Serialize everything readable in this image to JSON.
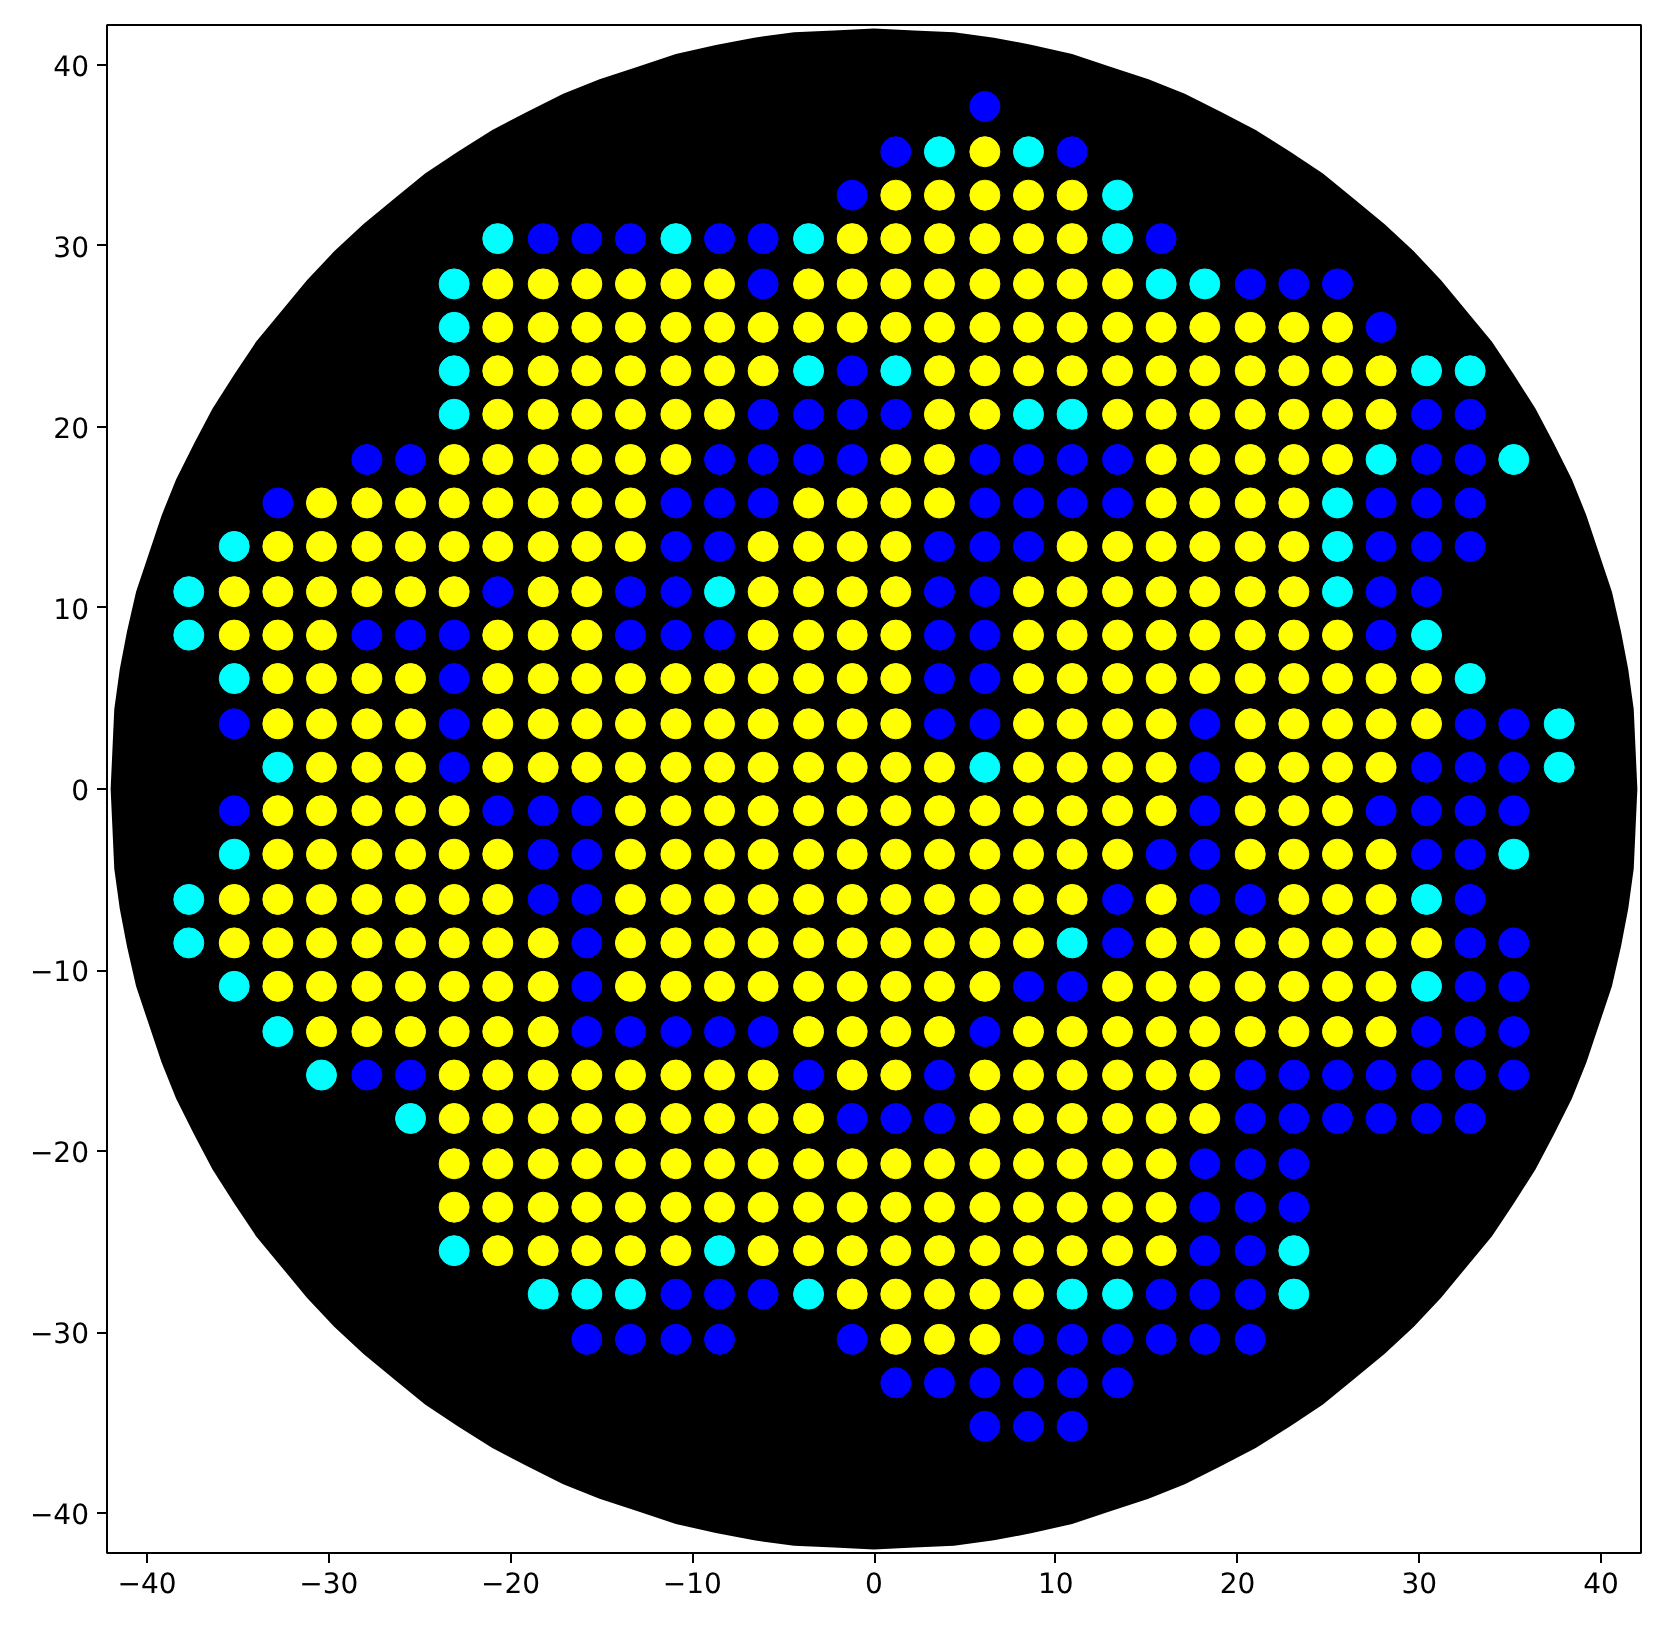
{
  "chart_data": {
    "type": "scatter",
    "xlim": [
      -42.2,
      42.2
    ],
    "ylim": [
      -42.2,
      42.2
    ],
    "xticks": [
      -40,
      -30,
      -20,
      -10,
      0,
      10,
      20,
      30,
      40
    ],
    "yticks": [
      -40,
      -30,
      -20,
      -10,
      0,
      10,
      20,
      30,
      40
    ],
    "series": [
      {
        "type": "area",
        "color": "#000000",
        "x": [
          -42,
          -41.9,
          -41.8,
          -41.5,
          -41.1,
          -40.6,
          -39.9,
          -39.2,
          -38.4,
          -37.4,
          -36.4,
          -35.2,
          -34,
          -32.6,
          -31.2,
          -29.7,
          -28.1,
          -26.4,
          -24.7,
          -22.9,
          -21,
          -19.1,
          -17.1,
          -15.1,
          -13,
          -10.9,
          -8.7,
          -6.6,
          -4.4,
          -2.2,
          0,
          2.2,
          4.4,
          6.6,
          8.7,
          10.9,
          13,
          15.1,
          17.1,
          19.1,
          21,
          22.9,
          24.7,
          26.4,
          28.1,
          29.7,
          31.2,
          32.6,
          34,
          35.2,
          36.4,
          37.4,
          38.4,
          39.2,
          39.9,
          40.6,
          41.1,
          41.5,
          41.8,
          41.9,
          42
        ],
        "values": [
          0,
          2.2,
          4.4,
          6.6,
          8.7,
          10.9,
          13,
          15.1,
          17.1,
          19.1,
          21,
          22.9,
          24.7,
          26.4,
          28.1,
          29.7,
          31.2,
          32.6,
          34,
          35.2,
          36.4,
          37.4,
          38.4,
          39.2,
          39.9,
          40.6,
          41.1,
          41.5,
          41.8,
          41.9,
          42,
          41.9,
          41.8,
          41.5,
          41.1,
          40.6,
          39.9,
          39.2,
          38.4,
          37.4,
          36.4,
          35.2,
          34,
          32.6,
          31.2,
          29.7,
          28.1,
          26.4,
          24.7,
          22.9,
          21,
          19.1,
          17.1,
          15.1,
          13,
          10.9,
          8.7,
          6.6,
          4.4,
          2.2,
          0
        ]
      },
      {
        "type": "area",
        "color": "#000000",
        "x": [
          -42,
          -41.9,
          -41.8,
          -41.5,
          -41.1,
          -40.6,
          -39.9,
          -39.2,
          -38.4,
          -37.4,
          -36.4,
          -35.2,
          -34,
          -32.6,
          -31.2,
          -29.7,
          -28.1,
          -26.4,
          -24.7,
          -22.9,
          -21,
          -19.1,
          -17.1,
          -15.1,
          -13,
          -10.9,
          -8.7,
          -6.6,
          -4.4,
          -2.2,
          0,
          2.2,
          4.4,
          6.6,
          8.7,
          10.9,
          13,
          15.1,
          17.1,
          19.1,
          21,
          22.9,
          24.7,
          26.4,
          28.1,
          29.7,
          31.2,
          32.6,
          34,
          35.2,
          36.4,
          37.4,
          38.4,
          39.2,
          39.9,
          40.6,
          41.1,
          41.5,
          41.8,
          41.9,
          42
        ],
        "values": [
          0,
          -2.2,
          -4.4,
          -6.6,
          -8.7,
          -10.9,
          -13,
          -15.1,
          -17.1,
          -19.1,
          -21,
          -22.9,
          -24.7,
          -26.4,
          -28.1,
          -29.7,
          -31.2,
          -32.6,
          -34,
          -35.2,
          -36.4,
          -37.4,
          -38.4,
          -39.2,
          -39.9,
          -40.6,
          -41.1,
          -41.5,
          -41.8,
          -41.9,
          -42,
          -41.9,
          -41.8,
          -41.5,
          -41.1,
          -40.6,
          -39.9,
          -39.2,
          -38.4,
          -37.4,
          -36.4,
          -35.2,
          -34,
          -32.6,
          -31.2,
          -29.7,
          -28.1,
          -26.4,
          -24.7,
          -22.9,
          -21,
          -19.1,
          -17.1,
          -15.1,
          -13,
          -10.9,
          -8.7,
          -6.6,
          -4.4,
          -2.2,
          0
        ]
      },
      {
        "color": "#ffff00",
        "marker": "circle",
        "x": [
          6.1,
          1.2,
          3.6,
          6.1,
          8.5,
          10.9,
          -1.2,
          1.2,
          3.6,
          6.1,
          8.5,
          10.9,
          -20.7,
          -18.2,
          -15.8,
          -13.4,
          -10.9,
          -8.5,
          -3.6,
          -1.2,
          1.2,
          3.6,
          6.1,
          8.5,
          10.9,
          13.4,
          -20.7,
          -18.2,
          -15.8,
          -13.4,
          -10.9,
          -8.5,
          -6.1,
          -3.6,
          -1.2,
          1.2,
          3.6,
          6.1,
          8.5,
          10.9,
          13.4,
          15.8,
          18.2,
          20.7,
          23.1,
          25.5,
          -20.7,
          -18.2,
          -15.8,
          -13.4,
          -10.9,
          -8.5,
          -6.1,
          3.6,
          6.1,
          8.5,
          10.9,
          13.4,
          15.8,
          18.2,
          20.7,
          23.1,
          25.5,
          27.9,
          -20.7,
          -18.2,
          -15.8,
          -13.4,
          -10.9,
          -8.5,
          3.6,
          6.1,
          13.4,
          15.8,
          18.2,
          20.7,
          23.1,
          25.5,
          27.9,
          -23.1,
          -20.7,
          -18.2,
          -15.8,
          -13.4,
          -10.9,
          1.2,
          3.6,
          15.8,
          18.2,
          20.7,
          23.1,
          25.5,
          -30.4,
          -27.9,
          -25.5,
          -23.1,
          -20.7,
          -18.2,
          -15.8,
          -13.4,
          -3.6,
          -1.2,
          1.2,
          3.6,
          15.8,
          18.2,
          20.7,
          23.1,
          -32.8,
          -30.4,
          -27.9,
          -25.5,
          -23.1,
          -20.7,
          -18.2,
          -15.8,
          -13.4,
          -6.1,
          -3.6,
          -1.2,
          1.2,
          10.9,
          13.4,
          15.8,
          18.2,
          20.7,
          23.1,
          -35.2,
          -32.8,
          -30.4,
          -27.9,
          -25.5,
          -23.1,
          -18.2,
          -15.8,
          -6.1,
          -3.6,
          -1.2,
          1.2,
          8.5,
          10.9,
          13.4,
          15.8,
          18.2,
          20.7,
          23.1,
          -35.2,
          -32.8,
          -30.4,
          -20.7,
          -18.2,
          -15.8,
          -6.1,
          -3.6,
          -1.2,
          1.2,
          8.5,
          10.9,
          13.4,
          15.8,
          18.2,
          20.7,
          23.1,
          25.5,
          -32.8,
          -30.4,
          -27.9,
          -25.5,
          -20.7,
          -18.2,
          -15.8,
          -13.4,
          -10.9,
          -8.5,
          -6.1,
          -3.6,
          -1.2,
          1.2,
          8.5,
          10.9,
          13.4,
          15.8,
          18.2,
          20.7,
          23.1,
          25.5,
          27.9,
          30.4,
          -32.8,
          -30.4,
          -27.9,
          -25.5,
          -20.7,
          -18.2,
          -15.8,
          -13.4,
          -10.9,
          -8.5,
          -6.1,
          -3.6,
          -1.2,
          1.2,
          8.5,
          10.9,
          13.4,
          15.8,
          20.7,
          23.1,
          25.5,
          27.9,
          30.4,
          -30.4,
          -27.9,
          -25.5,
          -20.7,
          -18.2,
          -15.8,
          -13.4,
          -10.9,
          -8.5,
          -6.1,
          -3.6,
          -1.2,
          1.2,
          3.6,
          8.5,
          10.9,
          13.4,
          15.8,
          20.7,
          23.1,
          25.5,
          27.9,
          -32.8,
          -30.4,
          -27.9,
          -25.5,
          -23.1,
          -13.4,
          -10.9,
          -8.5,
          -6.1,
          -3.6,
          -1.2,
          1.2,
          3.6,
          6.1,
          8.5,
          10.9,
          13.4,
          15.8,
          20.7,
          23.1,
          25.5,
          -32.8,
          -30.4,
          -27.9,
          -25.5,
          -23.1,
          -20.7,
          -13.4,
          -10.9,
          -8.5,
          -6.1,
          -3.6,
          -1.2,
          1.2,
          3.6,
          6.1,
          8.5,
          10.9,
          13.4,
          20.7,
          23.1,
          25.5,
          27.9,
          -35.2,
          -32.8,
          -30.4,
          -27.9,
          -25.5,
          -23.1,
          -20.7,
          -13.4,
          -10.9,
          -8.5,
          -6.1,
          -3.6,
          -1.2,
          1.2,
          3.6,
          6.1,
          8.5,
          10.9,
          15.8,
          23.1,
          25.5,
          27.9,
          -35.2,
          -32.8,
          -30.4,
          -27.9,
          -25.5,
          -23.1,
          -20.7,
          -18.2,
          -13.4,
          -10.9,
          -8.5,
          -6.1,
          -3.6,
          -1.2,
          1.2,
          3.6,
          6.1,
          8.5,
          15.8,
          18.2,
          20.7,
          23.1,
          25.5,
          27.9,
          30.4,
          -32.8,
          -30.4,
          -27.9,
          -25.5,
          -23.1,
          -20.7,
          -18.2,
          -13.4,
          -10.9,
          -8.5,
          -6.1,
          -3.6,
          -1.2,
          1.2,
          3.6,
          6.1,
          13.4,
          15.8,
          18.2,
          20.7,
          23.1,
          25.5,
          27.9,
          -30.4,
          -27.9,
          -25.5,
          -23.1,
          -20.7,
          -18.2,
          -3.6,
          -1.2,
          1.2,
          3.6,
          8.5,
          10.9,
          13.4,
          15.8,
          18.2,
          20.7,
          23.1,
          25.5,
          27.9,
          -23.1,
          -20.7,
          -18.2,
          -15.8,
          -13.4,
          -10.9,
          -8.5,
          -6.1,
          -1.2,
          1.2,
          6.1,
          8.5,
          10.9,
          13.4,
          15.8,
          18.2,
          -23.1,
          -20.7,
          -18.2,
          -15.8,
          -13.4,
          -10.9,
          -8.5,
          -6.1,
          -3.6,
          6.1,
          8.5,
          10.9,
          13.4,
          15.8,
          18.2,
          -23.1,
          -20.7,
          -18.2,
          -15.8,
          -13.4,
          -10.9,
          -8.5,
          -6.1,
          -3.6,
          -1.2,
          1.2,
          3.6,
          6.1,
          8.5,
          10.9,
          13.4,
          15.8,
          -23.1,
          -20.7,
          -18.2,
          -15.8,
          -13.4,
          -10.9,
          -8.5,
          -6.1,
          -3.6,
          -1.2,
          1.2,
          3.6,
          6.1,
          8.5,
          10.9,
          13.4,
          15.8,
          -20.7,
          -18.2,
          -15.8,
          -13.4,
          -10.9,
          -6.1,
          -3.6,
          -1.2,
          1.2,
          3.6,
          6.1,
          8.5,
          10.9,
          13.4,
          15.8,
          -1.2,
          1.2,
          3.6,
          6.1,
          8.5,
          1.2,
          3.6,
          6.1
        ],
        "values": [
          35.2,
          32.8,
          32.8,
          32.8,
          32.8,
          32.8,
          30.4,
          30.4,
          30.4,
          30.4,
          30.4,
          30.4,
          27.9,
          27.9,
          27.9,
          27.9,
          27.9,
          27.9,
          27.9,
          27.9,
          27.9,
          27.9,
          27.9,
          27.9,
          27.9,
          27.9,
          25.5,
          25.5,
          25.5,
          25.5,
          25.5,
          25.5,
          25.5,
          25.5,
          25.5,
          25.5,
          25.5,
          25.5,
          25.5,
          25.5,
          25.5,
          25.5,
          25.5,
          25.5,
          25.5,
          25.5,
          23.1,
          23.1,
          23.1,
          23.1,
          23.1,
          23.1,
          23.1,
          23.1,
          23.1,
          23.1,
          23.1,
          23.1,
          23.1,
          23.1,
          23.1,
          23.1,
          23.1,
          23.1,
          20.7,
          20.7,
          20.7,
          20.7,
          20.7,
          20.7,
          20.7,
          20.7,
          20.7,
          20.7,
          20.7,
          20.7,
          20.7,
          20.7,
          20.7,
          18.2,
          18.2,
          18.2,
          18.2,
          18.2,
          18.2,
          18.2,
          18.2,
          18.2,
          18.2,
          18.2,
          18.2,
          18.2,
          15.8,
          15.8,
          15.8,
          15.8,
          15.8,
          15.8,
          15.8,
          15.8,
          15.8,
          15.8,
          15.8,
          15.8,
          15.8,
          15.8,
          15.8,
          15.8,
          13.4,
          13.4,
          13.4,
          13.4,
          13.4,
          13.4,
          13.4,
          13.4,
          13.4,
          13.4,
          13.4,
          13.4,
          13.4,
          13.4,
          13.4,
          13.4,
          13.4,
          13.4,
          13.4,
          10.9,
          10.9,
          10.9,
          10.9,
          10.9,
          10.9,
          10.9,
          10.9,
          10.9,
          10.9,
          10.9,
          10.9,
          10.9,
          10.9,
          10.9,
          10.9,
          10.9,
          10.9,
          10.9,
          8.5,
          8.5,
          8.5,
          8.5,
          8.5,
          8.5,
          8.5,
          8.5,
          8.5,
          8.5,
          8.5,
          8.5,
          8.5,
          8.5,
          8.5,
          8.5,
          8.5,
          8.5,
          6.1,
          6.1,
          6.1,
          6.1,
          6.1,
          6.1,
          6.1,
          6.1,
          6.1,
          6.1,
          6.1,
          6.1,
          6.1,
          6.1,
          6.1,
          6.1,
          6.1,
          6.1,
          6.1,
          6.1,
          6.1,
          6.1,
          6.1,
          6.1,
          3.6,
          3.6,
          3.6,
          3.6,
          3.6,
          3.6,
          3.6,
          3.6,
          3.6,
          3.6,
          3.6,
          3.6,
          3.6,
          3.6,
          3.6,
          3.6,
          3.6,
          3.6,
          3.6,
          3.6,
          3.6,
          3.6,
          3.6,
          1.2,
          1.2,
          1.2,
          1.2,
          1.2,
          1.2,
          1.2,
          1.2,
          1.2,
          1.2,
          1.2,
          1.2,
          1.2,
          1.2,
          1.2,
          1.2,
          1.2,
          1.2,
          1.2,
          1.2,
          1.2,
          1.2,
          -1.2,
          -1.2,
          -1.2,
          -1.2,
          -1.2,
          -1.2,
          -1.2,
          -1.2,
          -1.2,
          -1.2,
          -1.2,
          -1.2,
          -1.2,
          -1.2,
          -1.2,
          -1.2,
          -1.2,
          -1.2,
          -1.2,
          -1.2,
          -1.2,
          -3.6,
          -3.6,
          -3.6,
          -3.6,
          -3.6,
          -3.6,
          -3.6,
          -3.6,
          -3.6,
          -3.6,
          -3.6,
          -3.6,
          -3.6,
          -3.6,
          -3.6,
          -3.6,
          -3.6,
          -3.6,
          -3.6,
          -3.6,
          -3.6,
          -3.6,
          -6.1,
          -6.1,
          -6.1,
          -6.1,
          -6.1,
          -6.1,
          -6.1,
          -6.1,
          -6.1,
          -6.1,
          -6.1,
          -6.1,
          -6.1,
          -6.1,
          -6.1,
          -6.1,
          -6.1,
          -6.1,
          -6.1,
          -6.1,
          -6.1,
          -6.1,
          -8.5,
          -8.5,
          -8.5,
          -8.5,
          -8.5,
          -8.5,
          -8.5,
          -8.5,
          -8.5,
          -8.5,
          -8.5,
          -8.5,
          -8.5,
          -8.5,
          -8.5,
          -8.5,
          -8.5,
          -8.5,
          -8.5,
          -8.5,
          -8.5,
          -8.5,
          -8.5,
          -8.5,
          -8.5,
          -10.9,
          -10.9,
          -10.9,
          -10.9,
          -10.9,
          -10.9,
          -10.9,
          -10.9,
          -10.9,
          -10.9,
          -10.9,
          -10.9,
          -10.9,
          -10.9,
          -10.9,
          -10.9,
          -10.9,
          -10.9,
          -10.9,
          -10.9,
          -10.9,
          -10.9,
          -10.9,
          -13.4,
          -13.4,
          -13.4,
          -13.4,
          -13.4,
          -13.4,
          -13.4,
          -13.4,
          -13.4,
          -13.4,
          -13.4,
          -13.4,
          -13.4,
          -13.4,
          -13.4,
          -13.4,
          -13.4,
          -13.4,
          -13.4,
          -15.8,
          -15.8,
          -15.8,
          -15.8,
          -15.8,
          -15.8,
          -15.8,
          -15.8,
          -15.8,
          -15.8,
          -15.8,
          -15.8,
          -15.8,
          -15.8,
          -15.8,
          -15.8,
          -18.2,
          -18.2,
          -18.2,
          -18.2,
          -18.2,
          -18.2,
          -18.2,
          -18.2,
          -18.2,
          -18.2,
          -18.2,
          -18.2,
          -18.2,
          -18.2,
          -18.2,
          -20.7,
          -20.7,
          -20.7,
          -20.7,
          -20.7,
          -20.7,
          -20.7,
          -20.7,
          -20.7,
          -20.7,
          -20.7,
          -20.7,
          -20.7,
          -20.7,
          -20.7,
          -20.7,
          -20.7,
          -23.1,
          -23.1,
          -23.1,
          -23.1,
          -23.1,
          -23.1,
          -23.1,
          -23.1,
          -23.1,
          -23.1,
          -23.1,
          -23.1,
          -23.1,
          -23.1,
          -23.1,
          -23.1,
          -23.1,
          -25.5,
          -25.5,
          -25.5,
          -25.5,
          -25.5,
          -25.5,
          -25.5,
          -25.5,
          -25.5,
          -25.5,
          -25.5,
          -25.5,
          -25.5,
          -25.5,
          -25.5,
          -27.9,
          -27.9,
          -27.9,
          -27.9,
          -27.9,
          -30.4,
          -30.4,
          -30.4
        ]
      },
      {
        "color": "#0000ff",
        "marker": "circle",
        "x": [
          6.1,
          1.2,
          10.9,
          -1.2,
          -18.2,
          -15.8,
          -13.4,
          -8.5,
          -6.1,
          15.8,
          -6.1,
          20.7,
          23.1,
          25.5,
          27.9,
          -1.2,
          -6.1,
          -3.6,
          -1.2,
          1.2,
          30.4,
          32.8,
          -27.9,
          -25.5,
          -8.5,
          -6.1,
          -3.6,
          -1.2,
          6.1,
          8.5,
          10.9,
          13.4,
          30.4,
          32.8,
          -32.8,
          -10.9,
          -8.5,
          -6.1,
          6.1,
          8.5,
          10.9,
          13.4,
          27.9,
          30.4,
          32.8,
          -10.9,
          -8.5,
          3.6,
          6.1,
          8.5,
          27.9,
          30.4,
          32.8,
          -20.7,
          -13.4,
          -10.9,
          3.6,
          6.1,
          27.9,
          30.4,
          -27.9,
          -25.5,
          -23.1,
          -13.4,
          -10.9,
          -8.5,
          3.6,
          6.1,
          27.9,
          -23.1,
          3.6,
          6.1,
          -35.2,
          -23.1,
          3.6,
          6.1,
          18.2,
          32.8,
          35.2,
          -23.1,
          18.2,
          30.4,
          32.8,
          35.2,
          -35.2,
          -20.7,
          -18.2,
          -15.8,
          18.2,
          27.9,
          30.4,
          32.8,
          35.2,
          -18.2,
          -15.8,
          15.8,
          18.2,
          30.4,
          32.8,
          -18.2,
          -15.8,
          13.4,
          18.2,
          20.7,
          32.8,
          -15.8,
          13.4,
          32.8,
          35.2,
          -15.8,
          8.5,
          10.9,
          32.8,
          35.2,
          -15.8,
          -13.4,
          -10.9,
          -8.5,
          -6.1,
          6.1,
          30.4,
          32.8,
          35.2,
          -27.9,
          -25.5,
          -3.6,
          3.6,
          20.7,
          23.1,
          25.5,
          27.9,
          30.4,
          32.8,
          35.2,
          -1.2,
          1.2,
          3.6,
          20.7,
          23.1,
          25.5,
          27.9,
          30.4,
          32.8,
          18.2,
          20.7,
          23.1,
          18.2,
          20.7,
          23.1,
          18.2,
          20.7,
          -10.9,
          -8.5,
          -6.1,
          15.8,
          18.2,
          20.7,
          -15.8,
          -13.4,
          -10.9,
          -8.5,
          -1.2,
          8.5,
          10.9,
          13.4,
          15.8,
          18.2,
          20.7,
          1.2,
          3.6,
          6.1,
          8.5,
          10.9,
          13.4,
          6.1,
          8.5,
          10.9
        ],
        "values": [
          37.7,
          35.2,
          35.2,
          32.8,
          30.4,
          30.4,
          30.4,
          30.4,
          30.4,
          30.4,
          27.9,
          27.9,
          27.9,
          27.9,
          25.5,
          23.1,
          20.7,
          20.7,
          20.7,
          20.7,
          20.7,
          20.7,
          18.2,
          18.2,
          18.2,
          18.2,
          18.2,
          18.2,
          18.2,
          18.2,
          18.2,
          18.2,
          18.2,
          18.2,
          15.8,
          15.8,
          15.8,
          15.8,
          15.8,
          15.8,
          15.8,
          15.8,
          15.8,
          15.8,
          15.8,
          13.4,
          13.4,
          13.4,
          13.4,
          13.4,
          13.4,
          13.4,
          13.4,
          10.9,
          10.9,
          10.9,
          10.9,
          10.9,
          10.9,
          10.9,
          8.5,
          8.5,
          8.5,
          8.5,
          8.5,
          8.5,
          8.5,
          8.5,
          8.5,
          6.1,
          6.1,
          6.1,
          3.6,
          3.6,
          3.6,
          3.6,
          3.6,
          3.6,
          3.6,
          1.2,
          1.2,
          1.2,
          1.2,
          1.2,
          -1.2,
          -1.2,
          -1.2,
          -1.2,
          -1.2,
          -1.2,
          -1.2,
          -1.2,
          -1.2,
          -3.6,
          -3.6,
          -3.6,
          -3.6,
          -3.6,
          -3.6,
          -6.1,
          -6.1,
          -6.1,
          -6.1,
          -6.1,
          -6.1,
          -8.5,
          -8.5,
          -8.5,
          -8.5,
          -10.9,
          -10.9,
          -10.9,
          -10.9,
          -10.9,
          -13.4,
          -13.4,
          -13.4,
          -13.4,
          -13.4,
          -13.4,
          -13.4,
          -13.4,
          -13.4,
          -15.8,
          -15.8,
          -15.8,
          -15.8,
          -15.8,
          -15.8,
          -15.8,
          -15.8,
          -15.8,
          -15.8,
          -15.8,
          -18.2,
          -18.2,
          -18.2,
          -18.2,
          -18.2,
          -18.2,
          -18.2,
          -18.2,
          -18.2,
          -20.7,
          -20.7,
          -20.7,
          -23.1,
          -23.1,
          -23.1,
          -25.5,
          -25.5,
          -27.9,
          -27.9,
          -27.9,
          -27.9,
          -27.9,
          -27.9,
          -30.4,
          -30.4,
          -30.4,
          -30.4,
          -30.4,
          -30.4,
          -30.4,
          -30.4,
          -30.4,
          -30.4,
          -30.4,
          -32.8,
          -32.8,
          -32.8,
          -32.8,
          -32.8,
          -32.8,
          -35.2,
          -35.2,
          -35.2
        ]
      },
      {
        "color": "#00ffff",
        "marker": "circle",
        "x": [
          3.6,
          8.5,
          13.4,
          -20.7,
          -10.9,
          -3.6,
          13.4,
          -23.1,
          15.8,
          18.2,
          -23.1,
          -23.1,
          -3.6,
          1.2,
          30.4,
          32.8,
          -23.1,
          8.5,
          10.9,
          27.9,
          35.2,
          25.5,
          -35.2,
          25.5,
          -37.7,
          -8.5,
          25.5,
          -37.7,
          30.4,
          -35.2,
          32.8,
          37.7,
          -32.8,
          6.1,
          37.7,
          -35.2,
          35.2,
          -37.7,
          30.4,
          -37.7,
          10.9,
          -35.2,
          30.4,
          -32.8,
          -30.4,
          -25.5,
          -23.1,
          -8.5,
          23.1,
          -18.2,
          -15.8,
          -13.4,
          -3.6,
          10.9,
          13.4,
          23.1
        ],
        "values": [
          35.2,
          35.2,
          32.8,
          30.4,
          30.4,
          30.4,
          30.4,
          27.9,
          27.9,
          27.9,
          25.5,
          23.1,
          23.1,
          23.1,
          23.1,
          23.1,
          20.7,
          20.7,
          20.7,
          18.2,
          18.2,
          15.8,
          13.4,
          13.4,
          10.9,
          10.9,
          10.9,
          8.5,
          8.5,
          6.1,
          6.1,
          3.6,
          1.2,
          1.2,
          1.2,
          -3.6,
          -3.6,
          -6.1,
          -6.1,
          -8.5,
          -8.5,
          -10.9,
          -10.9,
          -13.4,
          -15.8,
          -18.2,
          -25.5,
          -25.5,
          -25.5,
          -27.9,
          -27.9,
          -27.9,
          -27.9,
          -27.9,
          -27.9,
          -27.9
        ]
      }
    ]
  }
}
